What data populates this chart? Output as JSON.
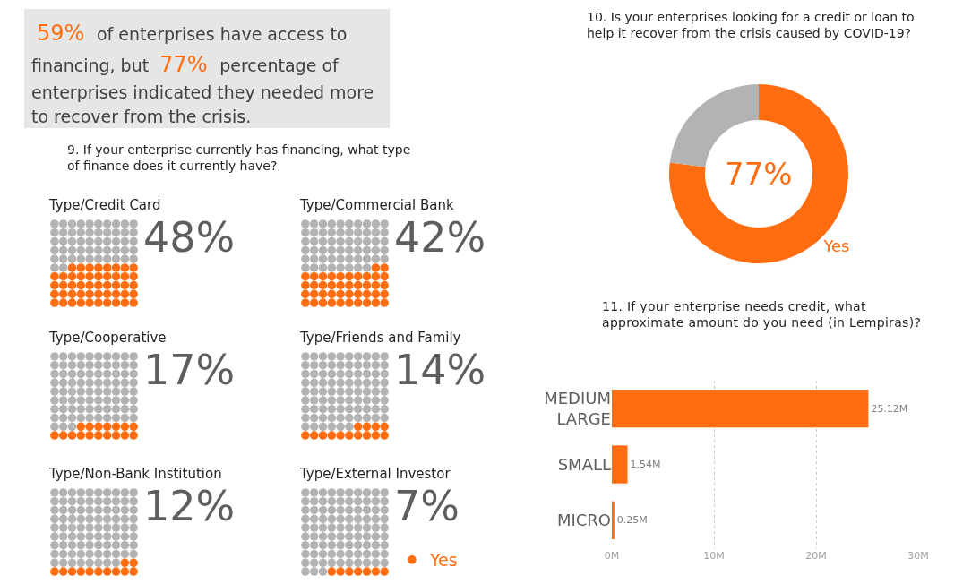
{
  "chart_data": [
    {
      "type": "other",
      "annotations": [
        "59%",
        "of enterprises have access to financing, but",
        "77%",
        "percentage of enterprises indicated they needed more to recover from the crisis."
      ]
    },
    {
      "type": "other",
      "title": "9. If your enterprise currently has financing, what type of finance does it currently have?",
      "categories": [
        "Type/Credit Card",
        "Type/Commercial Bank",
        "Type/Cooperative",
        "Type/Friends and Family",
        "Type/Non-Bank Institution",
        "Type/External Investor"
      ],
      "series": [
        {
          "name": "Yes",
          "color": "#ff6d10",
          "values": [
            48,
            42,
            17,
            14,
            12,
            7
          ],
          "value_labels": [
            "48%",
            "42%",
            "17%",
            "14%",
            "12%",
            "7%"
          ]
        }
      ],
      "legend": "bottom right"
    },
    {
      "type": "donut",
      "title": "10. Is your enterprises looking for a credit or loan to help it recover from the crisis caused by COVID-19?",
      "categories": [
        "Yes",
        null
      ],
      "values": [
        77,
        23
      ],
      "colors": [
        "#ff6d10",
        "#b3b3b3"
      ],
      "value_labels": [
        "77%",
        null
      ]
    },
    {
      "type": "bar",
      "orientation": "horizontal",
      "title": "11. If your enterprise needs credit, what approximate amount do you need (in Lempiras)?",
      "categories": [
        "MEDIUM LARGE",
        "SMALL",
        "MICRO"
      ],
      "values": [
        25.12,
        1.54,
        0.25
      ],
      "color": "#ff6d10",
      "value_labels": [
        "25.12M",
        "1.54M",
        "0.25M"
      ],
      "xlim": [
        0,
        30
      ],
      "xticks": [
        {
          "value": 0,
          "label": "0M"
        },
        {
          "value": 10,
          "label": "10M"
        },
        {
          "value": 20,
          "label": "20M"
        },
        {
          "value": 30,
          "label": "30M"
        }
      ],
      "grid": "x"
    }
  ]
}
